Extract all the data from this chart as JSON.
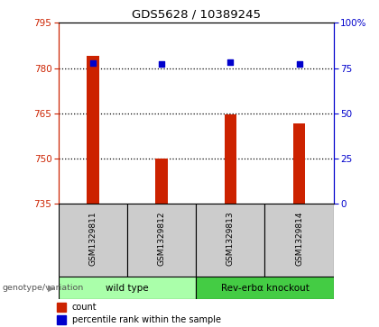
{
  "title": "GDS5628 / 10389245",
  "samples": [
    "GSM1329811",
    "GSM1329812",
    "GSM1329813",
    "GSM1329814"
  ],
  "counts": [
    784.0,
    750.0,
    764.5,
    761.5
  ],
  "percentiles": [
    77.5,
    77.0,
    78.0,
    77.0
  ],
  "ylim_left": [
    735,
    795
  ],
  "ylim_right": [
    0,
    100
  ],
  "yticks_left": [
    735,
    750,
    765,
    780,
    795
  ],
  "yticks_right": [
    0,
    25,
    50,
    75,
    100
  ],
  "bar_color": "#cc2200",
  "dot_color": "#0000cc",
  "bar_width": 0.18,
  "groups": [
    {
      "label": "wild type",
      "indices": [
        0,
        1
      ],
      "color": "#aaffaa"
    },
    {
      "label": "Rev-erbα knockout",
      "indices": [
        2,
        3
      ],
      "color": "#44cc44"
    }
  ],
  "xlabel_label": "genotype/variation",
  "legend_count_label": "count",
  "legend_pct_label": "percentile rank within the sample",
  "left_axis_color": "#cc2200",
  "right_axis_color": "#0000cc",
  "bg_color": "#ffffff",
  "plot_bg_color": "#ffffff",
  "sample_bg_color": "#cccccc",
  "grid_yticks": [
    750,
    765,
    780
  ]
}
